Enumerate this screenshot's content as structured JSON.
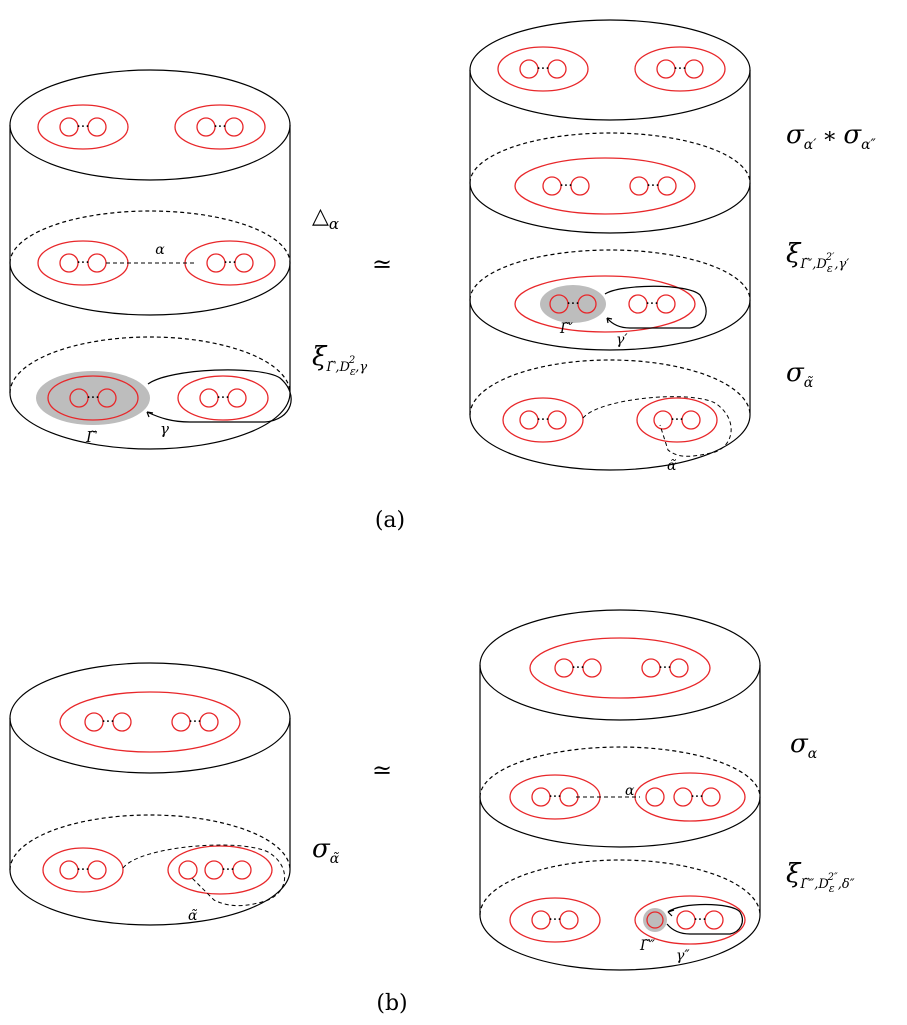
{
  "colors": {
    "line": "#000000",
    "red": "#e8272a",
    "shade": "#bdbdbd"
  },
  "captions": {
    "a": "(a)",
    "b": "(b)"
  },
  "symbols": {
    "equiv_a": "≃",
    "equiv_b": "≃",
    "dots": "···"
  },
  "labels": {
    "a_left_delta": "△",
    "a_left_delta_sub": "α",
    "a_left_xi": "ξ",
    "a_left_xi_sub": "Γ̃,D",
    "a_left_xi_sub2": "ε",
    "a_left_xi_sup": "2",
    "a_left_xi_tail": ",γ",
    "a_left_alpha": "α",
    "a_left_gamma": "γ",
    "a_left_gammatilde": "Γ̃",
    "a_right_sigma1": "σ",
    "a_right_sigma1_sub": "α′",
    "a_right_star": "∗",
    "a_right_sigma2": "σ",
    "a_right_sigma2_sub": "α″",
    "a_right_xi": "ξ",
    "a_right_xi_sub": "Γ̃′,D",
    "a_right_xi_sub2": "ε",
    "a_right_xi_sup": "2′",
    "a_right_xi_tail": ",γ′",
    "a_right_sigma3": "σ",
    "a_right_sigma3_sub": "α̃",
    "a_right_gammatilde": "Γ̃′",
    "a_right_gamma": "γ′",
    "a_right_alphatilde": "α̃",
    "b_left_sigma": "σ",
    "b_left_sigma_sub": "α̃",
    "b_left_alphatilde": "α̃",
    "b_right_sigma": "σ",
    "b_right_sigma_sub": "α",
    "b_right_alpha": "α",
    "b_right_xi": "ξ",
    "b_right_xi_sub": "Γ̃″,D",
    "b_right_xi_sub2": "ε",
    "b_right_xi_sup": "2″",
    "b_right_xi_tail": ",δ″",
    "b_right_gammatilde": "Γ̃″",
    "b_right_gamma": "γ″"
  }
}
